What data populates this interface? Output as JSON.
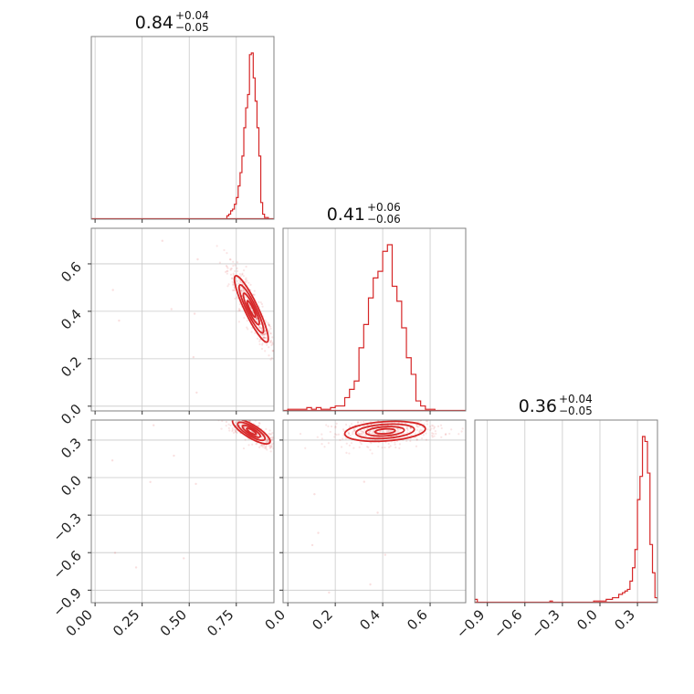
{
  "chart_data": {
    "type": "corner",
    "accent_color": "#d62728",
    "parameters": [
      {
        "summary": {
          "median": "0.84",
          "plus": "+0.04",
          "minus": "−0.05"
        },
        "range": [
          -0.02,
          0.95
        ],
        "ticks": [
          0.0,
          0.25,
          0.5,
          0.75
        ],
        "tick_labels": [
          "0.00",
          "0.25",
          "0.50",
          "0.75"
        ],
        "histogram": {
          "edges": [
            -0.02,
            0.9,
            0.92,
            0.94
          ],
          "bins_x": [
            0.7,
            0.71,
            0.72,
            0.73,
            0.74,
            0.75,
            0.76,
            0.77,
            0.78,
            0.79,
            0.8,
            0.81,
            0.82,
            0.83,
            0.84,
            0.85,
            0.86,
            0.87,
            0.88,
            0.89,
            0.9,
            0.91,
            0.92
          ],
          "bins_y": [
            0.02,
            0.03,
            0.05,
            0.06,
            0.09,
            0.13,
            0.2,
            0.28,
            0.38,
            0.55,
            0.67,
            0.75,
            0.99,
            1.0,
            0.85,
            0.71,
            0.55,
            0.38,
            0.1,
            0.03,
            0.01,
            0.01,
            0.0
          ]
        }
      },
      {
        "summary": {
          "median": "0.41",
          "plus": "+0.06",
          "minus": "−0.06"
        },
        "range": [
          -0.02,
          0.75
        ],
        "ticks": [
          0.0,
          0.2,
          0.4,
          0.6
        ],
        "tick_labels": [
          "0.0",
          "0.2",
          "0.4",
          "0.6"
        ],
        "histogram": {
          "bins_x": [
            0.0,
            0.02,
            0.04,
            0.06,
            0.08,
            0.1,
            0.12,
            0.14,
            0.16,
            0.18,
            0.2,
            0.22,
            0.24,
            0.26,
            0.28,
            0.3,
            0.32,
            0.34,
            0.36,
            0.38,
            0.4,
            0.42,
            0.44,
            0.46,
            0.48,
            0.5,
            0.52,
            0.54,
            0.56,
            0.58,
            0.6,
            0.62,
            0.64,
            0.66,
            0.68,
            0.7,
            0.72
          ],
          "bins_y": [
            0.01,
            0.01,
            0.01,
            0.01,
            0.02,
            0.01,
            0.02,
            0.01,
            0.01,
            0.02,
            0.03,
            0.03,
            0.08,
            0.13,
            0.18,
            0.38,
            0.52,
            0.68,
            0.8,
            0.84,
            0.96,
            1.0,
            0.75,
            0.66,
            0.5,
            0.32,
            0.22,
            0.06,
            0.03,
            0.01,
            0.01,
            0.0,
            0.0,
            0.0,
            0.0,
            0.0,
            0.0
          ]
        }
      },
      {
        "summary": {
          "median": "0.36",
          "plus": "+0.04",
          "minus": "−0.05"
        },
        "range": [
          -1.0,
          0.46
        ],
        "ticks": [
          -0.9,
          -0.6,
          -0.3,
          0.0,
          0.3
        ],
        "tick_labels": [
          "−0.9",
          "−0.6",
          "−0.3",
          "0.0",
          "0.3"
        ],
        "histogram": {
          "bins_x": [
            -1.0,
            -0.98,
            -0.4,
            -0.38,
            -0.05,
            0.0,
            0.05,
            0.1,
            0.15,
            0.18,
            0.2,
            0.22,
            0.24,
            0.26,
            0.28,
            0.3,
            0.32,
            0.34,
            0.36,
            0.38,
            0.4,
            0.42,
            0.44
          ],
          "bins_y": [
            0.02,
            0.0,
            0.01,
            0.0,
            0.01,
            0.01,
            0.02,
            0.03,
            0.05,
            0.06,
            0.07,
            0.08,
            0.13,
            0.21,
            0.32,
            0.62,
            0.76,
            1.0,
            0.97,
            0.78,
            0.35,
            0.18,
            0.03
          ]
        }
      }
    ],
    "pairs": [
      {
        "row": 1,
        "col": 0,
        "center": [
          0.83,
          0.41
        ],
        "spread": [
          0.045,
          0.07
        ],
        "corr": -0.9
      },
      {
        "row": 2,
        "col": 0,
        "center": [
          0.83,
          0.37
        ],
        "spread": [
          0.05,
          0.05
        ],
        "corr": -0.8
      },
      {
        "row": 2,
        "col": 1,
        "center": [
          0.41,
          0.37
        ],
        "spread": [
          0.085,
          0.04
        ],
        "corr": 0.25
      }
    ]
  }
}
